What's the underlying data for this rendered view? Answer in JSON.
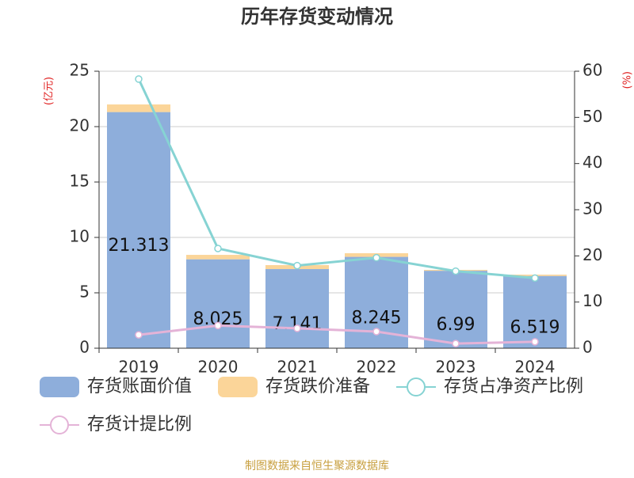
{
  "chart_data": {
    "type": "bar_line_combo",
    "title": "历年存货变动情况",
    "y_label": "(亿元)",
    "y2_label": "(%)",
    "categories": [
      "2019",
      "2020",
      "2021",
      "2022",
      "2023",
      "2024"
    ],
    "series": [
      {
        "name": "存货账面价值",
        "type": "bar",
        "color": "#8eaedb",
        "values": [
          21.313,
          8.025,
          7.141,
          8.245,
          6.99,
          6.519
        ]
      },
      {
        "name": "存货跌价准备",
        "type": "bar",
        "color": "#fbd599",
        "values": [
          0.69,
          0.4,
          0.36,
          0.33,
          0.08,
          0.12
        ]
      },
      {
        "name": "存货占净资产比例",
        "type": "line",
        "axis": "y2",
        "color": "#86d3d3",
        "values": [
          58.3,
          21.6,
          17.9,
          19.6,
          16.7,
          15.2
        ]
      },
      {
        "name": "存货计提比例",
        "type": "line",
        "axis": "y2",
        "color": "#e4b3d7",
        "values": [
          2.9,
          4.9,
          4.3,
          3.6,
          1.0,
          1.4
        ]
      }
    ],
    "ylim": [
      0,
      25
    ],
    "yticks": [
      0,
      5,
      10,
      15,
      20,
      25
    ],
    "y2lim": [
      0,
      60
    ],
    "y2ticks": [
      0,
      10,
      20,
      30,
      40,
      50,
      60
    ],
    "grid": true,
    "source": "制图数据来自恒生聚源数据库"
  }
}
